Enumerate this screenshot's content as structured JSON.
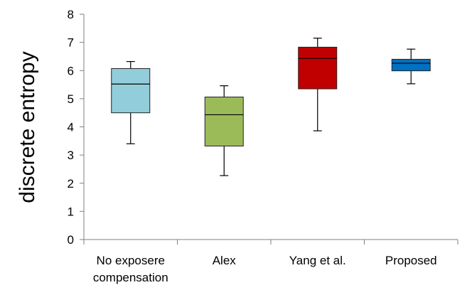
{
  "chart_data": {
    "type": "box",
    "title": "",
    "xlabel": "",
    "ylabel": "discrete entropy",
    "ylim": [
      0,
      8
    ],
    "yticks": [
      "0",
      "1",
      "2",
      "3",
      "4",
      "5",
      "6",
      "7",
      "8"
    ],
    "grid": false,
    "categories": [
      {
        "lines": [
          "No exposere",
          "compensation"
        ]
      },
      {
        "lines": [
          "Alex"
        ]
      },
      {
        "lines": [
          "Yang et al."
        ]
      },
      {
        "lines": [
          "Proposed"
        ]
      }
    ],
    "boxes": [
      {
        "min": 3.4,
        "q1": 4.5,
        "median": 5.52,
        "q3": 6.07,
        "max": 6.32,
        "color": "#92cddc"
      },
      {
        "min": 2.27,
        "q1": 3.32,
        "median": 4.43,
        "q3": 5.06,
        "max": 5.46,
        "color": "#9bbb59"
      },
      {
        "min": 3.86,
        "q1": 5.35,
        "median": 6.43,
        "q3": 6.83,
        "max": 7.15,
        "color": "#c00000"
      },
      {
        "min": 5.53,
        "q1": 5.99,
        "median": 6.26,
        "q3": 6.4,
        "max": 6.76,
        "color": "#0070c0"
      }
    ]
  }
}
